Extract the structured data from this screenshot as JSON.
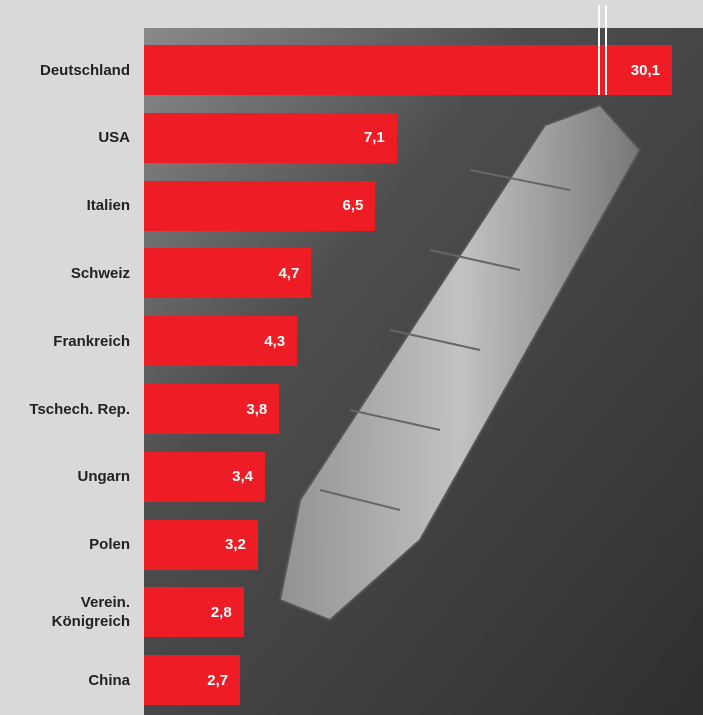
{
  "chart_data": {
    "type": "bar",
    "orientation": "horizontal",
    "color": "#ee1c25",
    "categories": [
      "Deutschland",
      "USA",
      "Italien",
      "Schweiz",
      "Frankreich",
      "Tschech. Rep.",
      "Ungarn",
      "Polen",
      "Verein. Königreich",
      "China"
    ],
    "values": [
      30.1,
      7.1,
      6.5,
      4.7,
      4.3,
      3.8,
      3.4,
      3.2,
      2.8,
      2.7
    ],
    "value_labels": [
      "30,1",
      "7,1",
      "6,5",
      "4,7",
      "4,3",
      "3,8",
      "3,4",
      "3,2",
      "2,8",
      "2,7"
    ]
  }
}
